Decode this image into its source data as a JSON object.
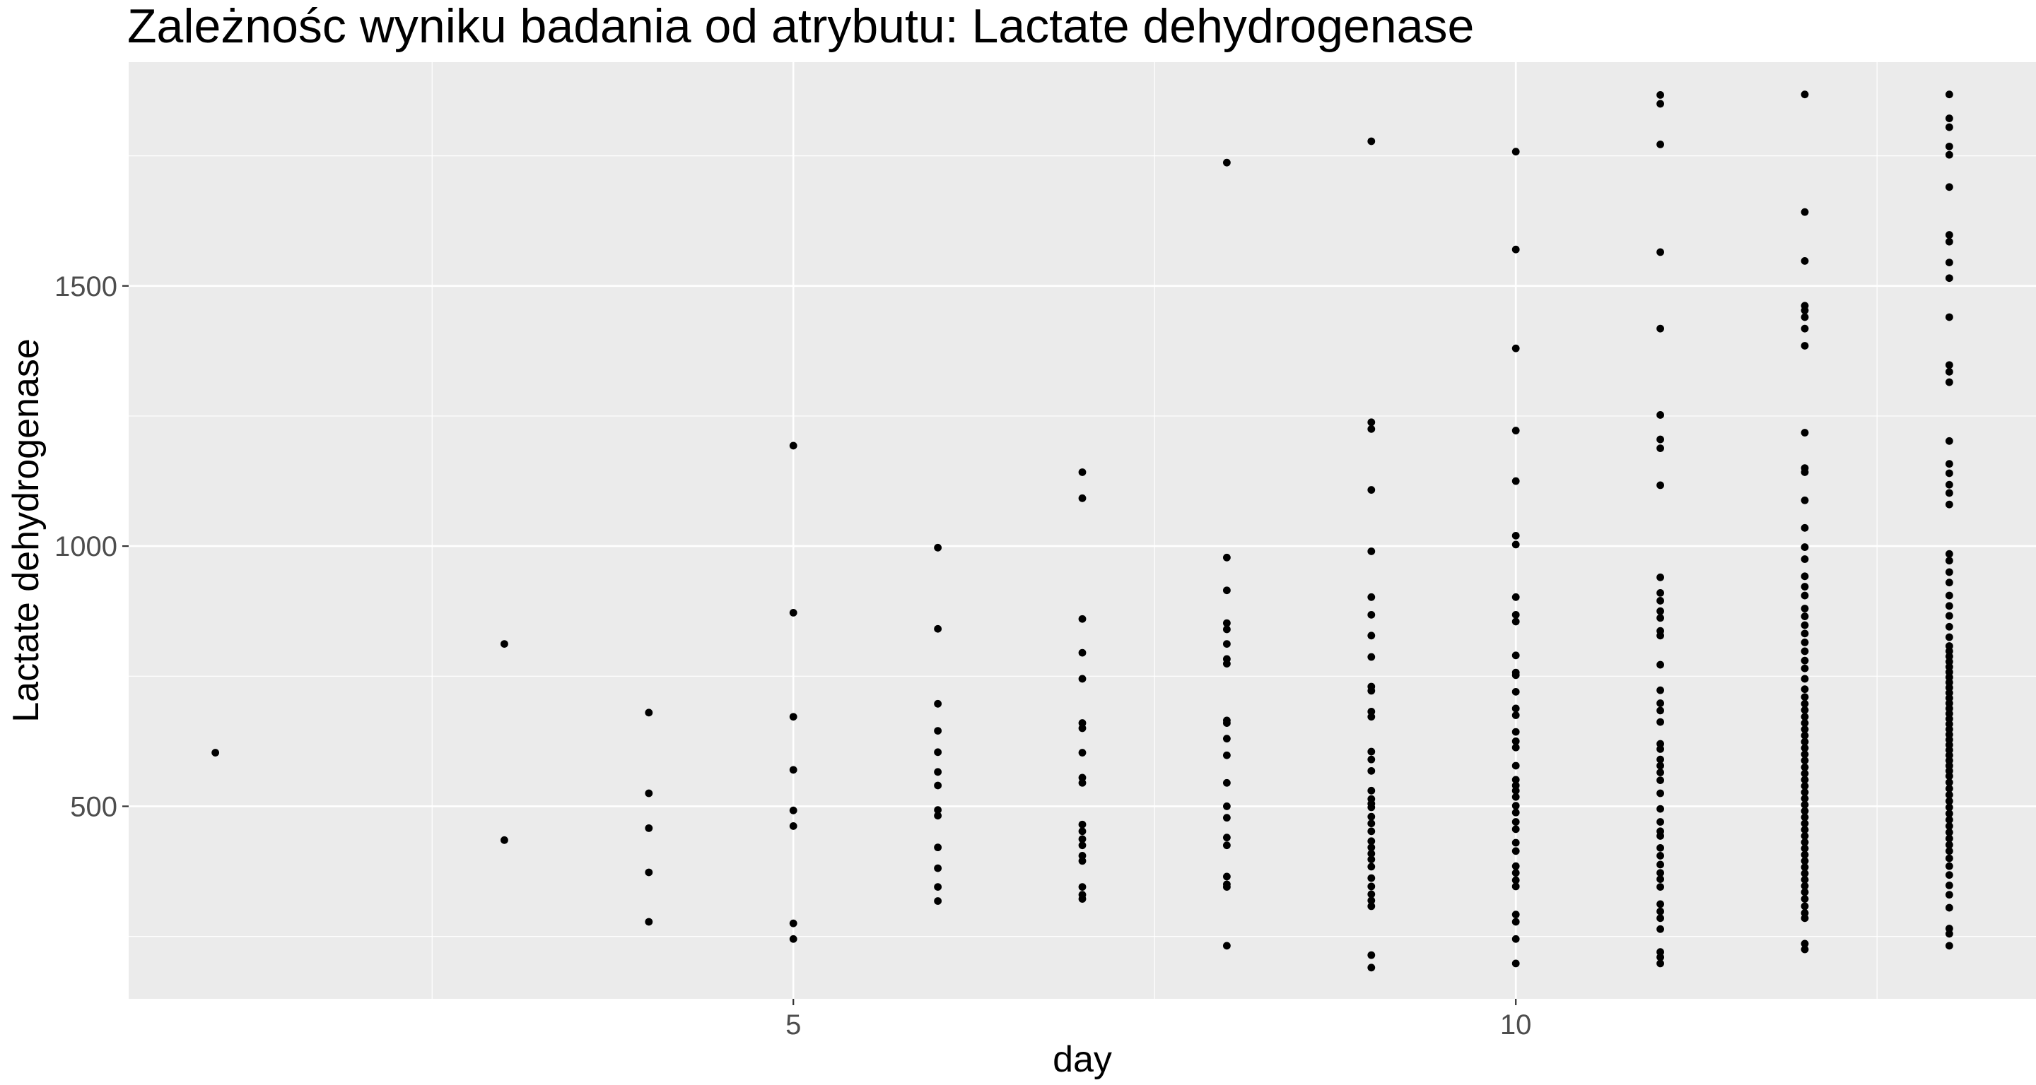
{
  "chart_data": {
    "type": "scatter",
    "title": "Zależnośc wyniku badania od atrybutu:  Lactate dehydrogenase",
    "xlabel": "day",
    "ylabel": "Lactate dehydrogenase",
    "xlim": [
      0.4,
      13.6
    ],
    "ylim": [
      130,
      1930
    ],
    "x_major_ticks": [
      5,
      10
    ],
    "x_minor_ticks": [
      2.5,
      7.5,
      12.5
    ],
    "y_major_ticks": [
      500,
      1000,
      1500
    ],
    "y_minor_ticks": [
      250,
      750,
      1250,
      1750
    ],
    "grid": true,
    "point_color": "#000000",
    "panel_color": "#ebebeb",
    "grid_color": "#ffffff",
    "points": [
      {
        "day": 1,
        "values": [
          603
        ]
      },
      {
        "day": 3,
        "values": [
          812,
          435
        ]
      },
      {
        "day": 4,
        "values": [
          680,
          525,
          458,
          373,
          278
        ]
      },
      {
        "day": 5,
        "values": [
          1193,
          872,
          672,
          570,
          492,
          462,
          275,
          245
        ]
      },
      {
        "day": 6,
        "values": [
          997,
          841,
          697,
          645,
          604,
          566,
          540,
          493,
          482,
          421,
          381,
          345,
          318
        ]
      },
      {
        "day": 7,
        "values": [
          1142,
          1092,
          860,
          795,
          745,
          660,
          650,
          603,
          555,
          545,
          465,
          452,
          437,
          425,
          405,
          395,
          345,
          330,
          322
        ]
      },
      {
        "day": 8,
        "values": [
          1737,
          978,
          915,
          852,
          840,
          812,
          783,
          774,
          665,
          660,
          630,
          598,
          545,
          500,
          478,
          440,
          425,
          365,
          350,
          345,
          232
        ]
      },
      {
        "day": 9,
        "values": [
          1778,
          1238,
          1225,
          1108,
          990,
          902,
          868,
          828,
          787,
          730,
          722,
          682,
          672,
          605,
          590,
          568,
          530,
          514,
          505,
          498,
          480,
          467,
          452,
          433,
          421,
          409,
          398,
          384,
          362,
          346,
          331,
          319,
          308,
          214,
          190
        ]
      },
      {
        "day": 10,
        "values": [
          1758,
          1570,
          1380,
          1222,
          1125,
          1020,
          1003,
          902,
          868,
          855,
          790,
          757,
          752,
          720,
          688,
          675,
          643,
          625,
          613,
          578,
          551,
          540,
          530,
          518,
          501,
          488,
          470,
          456,
          430,
          414,
          385,
          372,
          358,
          346,
          292,
          278,
          245,
          198
        ]
      },
      {
        "day": 11,
        "values": [
          1867,
          1850,
          1772,
          1565,
          1418,
          1252,
          1205,
          1188,
          1117,
          940,
          910,
          895,
          875,
          862,
          837,
          828,
          772,
          723,
          698,
          684,
          662,
          620,
          610,
          590,
          578,
          565,
          550,
          525,
          495,
          470,
          452,
          443,
          420,
          405,
          388,
          372,
          360,
          345,
          312,
          298,
          285,
          264,
          220,
          210,
          198
        ]
      },
      {
        "day": 12,
        "values": [
          1868,
          1642,
          1548,
          1462,
          1453,
          1440,
          1418,
          1385,
          1218,
          1150,
          1142,
          1088,
          1035,
          998,
          975,
          942,
          922,
          905,
          880,
          865,
          848,
          832,
          815,
          798,
          780,
          765,
          745,
          725,
          710,
          697,
          685,
          672,
          660,
          648,
          636,
          624,
          612,
          600,
          588,
          575,
          563,
          551,
          539,
          527,
          515,
          503,
          491,
          479,
          467,
          455,
          443,
          431,
          419,
          407,
          395,
          383,
          371,
          359,
          347,
          335,
          322,
          308,
          295,
          285,
          236,
          225
        ]
      },
      {
        "day": 13,
        "values": [
          1868,
          1822,
          1805,
          1768,
          1752,
          1690,
          1598,
          1585,
          1545,
          1515,
          1440,
          1348,
          1335,
          1315,
          1202,
          1158,
          1140,
          1118,
          1102,
          1080,
          985,
          972,
          950,
          930,
          905,
          885,
          866,
          845,
          825,
          808,
          798,
          788,
          778,
          768,
          758,
          748,
          738,
          728,
          718,
          708,
          698,
          688,
          678,
          668,
          658,
          648,
          638,
          628,
          618,
          608,
          598,
          588,
          578,
          568,
          558,
          546,
          534,
          522,
          510,
          498,
          486,
          474,
          462,
          450,
          438,
          426,
          414,
          400,
          385,
          368,
          348,
          330,
          305,
          265,
          255,
          232
        ]
      }
    ]
  }
}
